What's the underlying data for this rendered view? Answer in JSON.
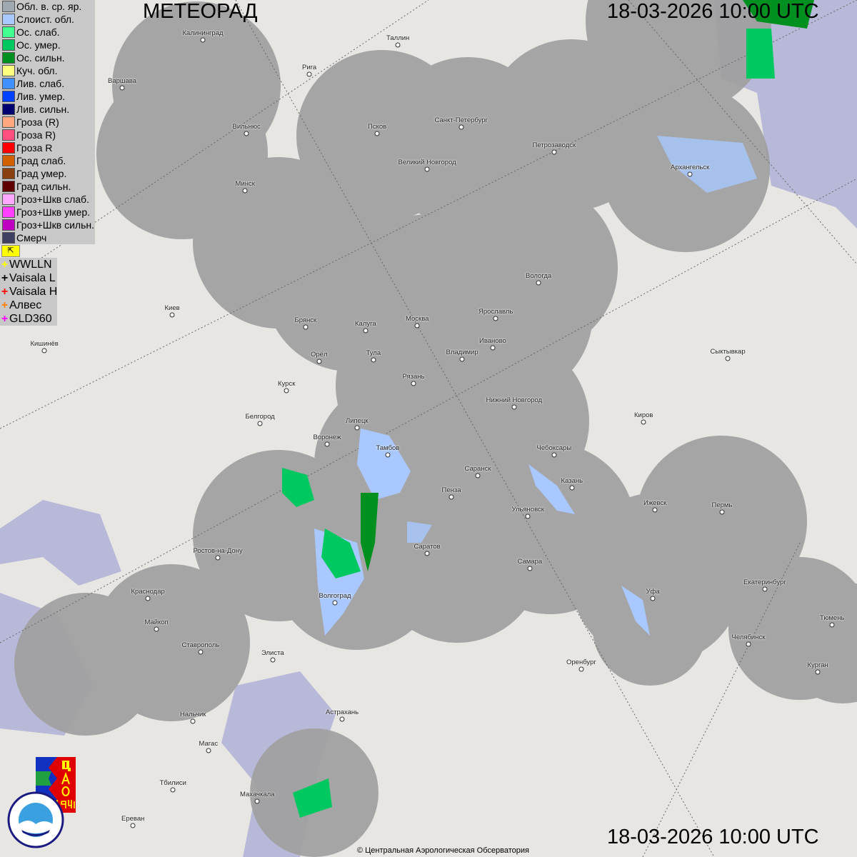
{
  "header": {
    "title": "МЕТЕОРАД",
    "timestamp": "18-03-2026  10:00 UTC"
  },
  "footer": {
    "timestamp": "18-03-2026  10:00 UTC",
    "copyright": "© Центральная Аэрологическая Обсерватория"
  },
  "legend": {
    "items": [
      {
        "label": "Обл. в. ср. яр.",
        "color": "#a0a8b0"
      },
      {
        "label": "Слоист. обл.",
        "color": "#a8c8ff"
      },
      {
        "label": "Ос. слаб.",
        "color": "#40ff90"
      },
      {
        "label": "Ос. умер.",
        "color": "#00c860"
      },
      {
        "label": "Ос. сильн.",
        "color": "#009020"
      },
      {
        "label": "Куч. обл.",
        "color": "#ffff80"
      },
      {
        "label": "Лив. слаб.",
        "color": "#4090ff"
      },
      {
        "label": "Лив. умер.",
        "color": "#0040ff"
      },
      {
        "label": "Лив. сильн.",
        "color": "#000070"
      },
      {
        "label": "Гроза (R)",
        "color": "#ffa880"
      },
      {
        "label": "Гроза R)",
        "color": "#ff5080"
      },
      {
        "label": "Гроза R",
        "color": "#ff0000"
      },
      {
        "label": "Град слаб.",
        "color": "#d06000"
      },
      {
        "label": "Град умер.",
        "color": "#8a4010"
      },
      {
        "label": "Град сильн.",
        "color": "#600000"
      },
      {
        "label": "Гроз+Шкв слаб.",
        "color": "#ffa8ff"
      },
      {
        "label": "Гроз+Шкв умер.",
        "color": "#ff40ff"
      },
      {
        "label": "Гроз+Шкв сильн.",
        "color": "#c000c0"
      },
      {
        "label": "Смерч",
        "color": "#404060"
      }
    ],
    "flag_icon": "arrow-flag-icon",
    "lightning": [
      {
        "label": "WWLLN",
        "color": "#ffff00"
      },
      {
        "label": "Vaisala L",
        "color": "#000000"
      },
      {
        "label": "Vaisala H",
        "color": "#ff0000"
      },
      {
        "label": "Алвес",
        "color": "#ff8000"
      },
      {
        "label": "GLD360",
        "color": "#ff00ff"
      }
    ]
  },
  "logos": {
    "cao": "ЦАО 1941",
    "roshydromet": "РОСГИДРОМЕТ ROSHYDROMET"
  },
  "cities": [
    "Калининград",
    "Таллин",
    "Рига",
    "Варшава",
    "Вильнюс",
    "Псков",
    "Санкт-Петербург",
    "Петрозаводск",
    "Архангельск",
    "Великий Новгород",
    "Минск",
    "Вологда",
    "Ярославль",
    "Москва",
    "Калуга",
    "Брянск",
    "Киев",
    "Иваново",
    "Владимир",
    "Тула",
    "Орёл",
    "Кишинёв",
    "Сыктывкар",
    "Рязань",
    "Курск",
    "Нижний Новгород",
    "Киров",
    "Белгород",
    "Липецк",
    "Воронеж",
    "Тамбов",
    "Чебоксары",
    "Саранск",
    "Казань",
    "Пенза",
    "Ижевск",
    "Пермь",
    "Ульяновск",
    "Саратов",
    "Ростов-на-Дону",
    "Самара",
    "Уфа",
    "Екатеринбург",
    "Краснодар",
    "Волгоград",
    "Майкоп",
    "Тюмень",
    "Челябинск",
    "Ставрополь",
    "Элиста",
    "Оренбург",
    "Курган",
    "Астрахань",
    "Нальчик",
    "Магас",
    "Тбилиси",
    "Махачкала",
    "Ереван"
  ]
}
